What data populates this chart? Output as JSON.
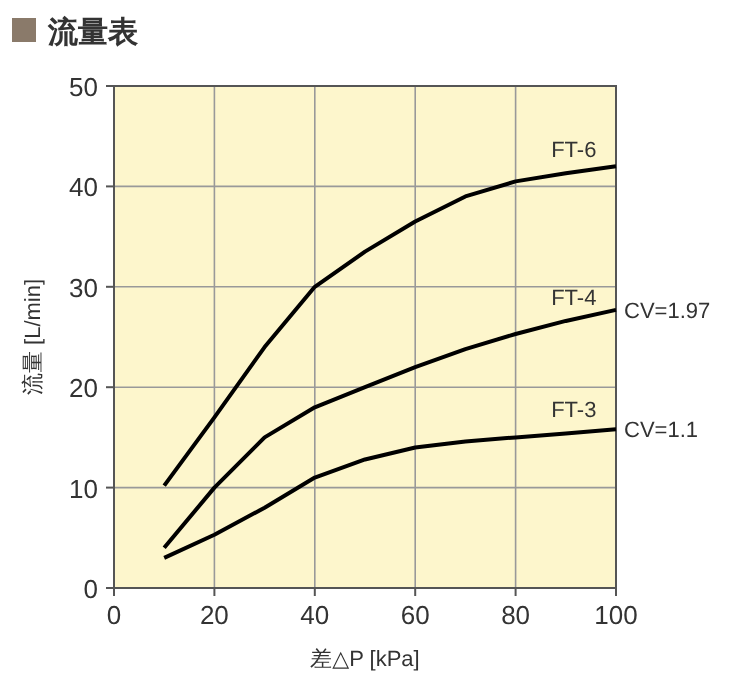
{
  "chart_data": {
    "type": "line",
    "title": "流量表",
    "xlabel": "差△P [kPa]",
    "ylabel": "流量 [L/min]",
    "x": [
      10,
      20,
      30,
      40,
      50,
      60,
      70,
      80,
      90,
      100
    ],
    "series": [
      {
        "name": "FT-6",
        "color": "#000000",
        "values": [
          10.2,
          17,
          24,
          30,
          33.5,
          36.5,
          39,
          40.5,
          41.3,
          42
        ]
      },
      {
        "name": "FT-4",
        "color": "#000000",
        "values": [
          4,
          10,
          15,
          18,
          20,
          22,
          23.8,
          25.3,
          26.6,
          27.7
        ]
      },
      {
        "name": "FT-3",
        "color": "#000000",
        "values": [
          3,
          5.3,
          8,
          11,
          12.8,
          14,
          14.6,
          15,
          15.4,
          15.8
        ]
      }
    ],
    "annotations": [
      {
        "text": "CV=1.97",
        "x": 100,
        "y": 27.7
      },
      {
        "text": "CV=1.1",
        "x": 100,
        "y": 15.8
      }
    ],
    "xlim": [
      0,
      100
    ],
    "ylim": [
      0,
      50
    ],
    "xticks": [
      0,
      20,
      40,
      60,
      80,
      100
    ],
    "yticks": [
      0,
      10,
      20,
      30,
      40,
      50
    ],
    "grid": true,
    "marker": "none",
    "line_style": "solid"
  }
}
